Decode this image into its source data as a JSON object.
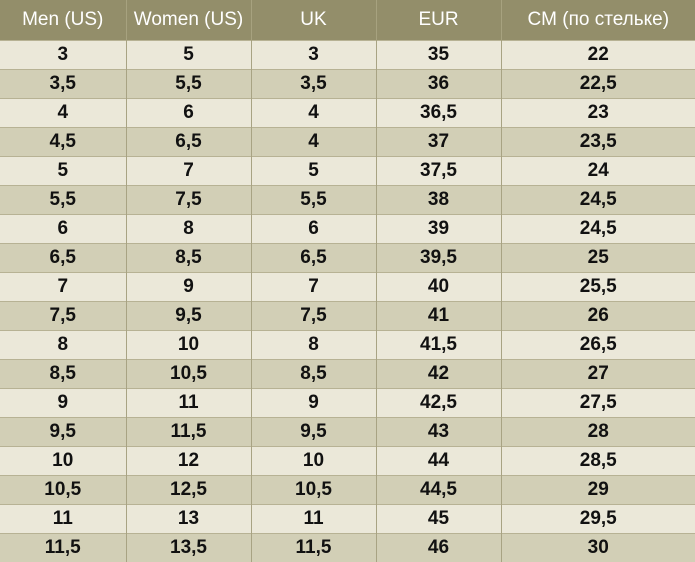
{
  "table": {
    "headers": [
      "Men (US)",
      "Women (US)",
      "UK",
      "EUR",
      "CM (по стельке)"
    ],
    "rows": [
      [
        "3",
        "5",
        "3",
        "35",
        "22"
      ],
      [
        "3,5",
        "5,5",
        "3,5",
        "36",
        "22,5"
      ],
      [
        "4",
        "6",
        "4",
        "36,5",
        "23"
      ],
      [
        "4,5",
        "6,5",
        "4",
        "37",
        "23,5"
      ],
      [
        "5",
        "7",
        "5",
        "37,5",
        "24"
      ],
      [
        "5,5",
        "7,5",
        "5,5",
        "38",
        "24,5"
      ],
      [
        "6",
        "8",
        "6",
        "39",
        "24,5"
      ],
      [
        "6,5",
        "8,5",
        "6,5",
        "39,5",
        "25"
      ],
      [
        "7",
        "9",
        "7",
        "40",
        "25,5"
      ],
      [
        "7,5",
        "9,5",
        "7,5",
        "41",
        "26"
      ],
      [
        "8",
        "10",
        "8",
        "41,5",
        "26,5"
      ],
      [
        "8,5",
        "10,5",
        "8,5",
        "42",
        "27"
      ],
      [
        "9",
        "11",
        "9",
        "42,5",
        "27,5"
      ],
      [
        "9,5",
        "11,5",
        "9,5",
        "43",
        "28"
      ],
      [
        "10",
        "12",
        "10",
        "44",
        "28,5"
      ],
      [
        "10,5",
        "12,5",
        "10,5",
        "44,5",
        "29"
      ],
      [
        "11",
        "13",
        "11",
        "45",
        "29,5"
      ],
      [
        "11,5",
        "13,5",
        "11,5",
        "46",
        "30"
      ]
    ]
  },
  "colors": {
    "header_background": "#938e6a",
    "header_text": "#ffffff",
    "row_light": "#ebe8d9",
    "row_dark": "#d2cfb6",
    "cell_text": "#111111"
  }
}
